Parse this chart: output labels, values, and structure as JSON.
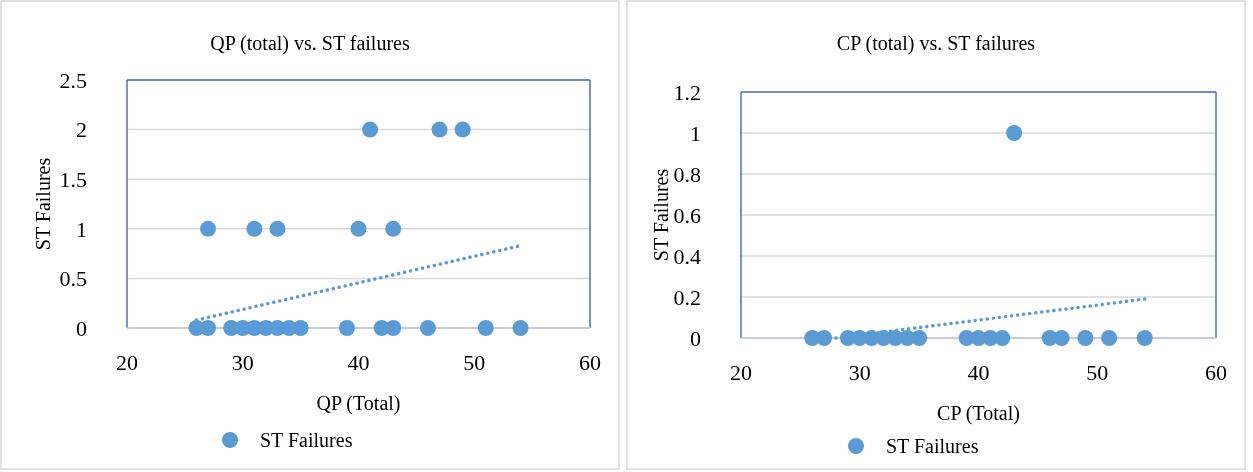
{
  "chart_data": [
    {
      "type": "scatter",
      "title": "QP (total) vs. ST failures",
      "xlabel": "QP (Total)",
      "ylabel": "ST Failures",
      "xlim": [
        20,
        60
      ],
      "xticks": [
        20,
        30,
        40,
        50,
        60
      ],
      "ylim": [
        0,
        2.5
      ],
      "yticks": [
        0,
        0.5,
        1,
        1.5,
        2,
        2.5
      ],
      "grid": "y",
      "legend": "bottom",
      "series": [
        {
          "name": "ST Failures",
          "color": "#5b9bd5",
          "marker": "circle",
          "x": [
            26,
            27,
            29,
            30,
            31,
            32,
            33,
            34,
            35,
            39,
            42,
            43,
            46,
            51,
            54,
            27,
            31,
            33,
            40,
            43,
            41,
            47,
            49
          ],
          "values": [
            0,
            0,
            0,
            0,
            0,
            0,
            0,
            0,
            0,
            0,
            0,
            0,
            0,
            0,
            0,
            1,
            1,
            1,
            1,
            1,
            2,
            2,
            2
          ]
        },
        {
          "type": "line",
          "color": "#5b9bd5",
          "marker": "none",
          "line_style": "dotted",
          "x": [
            26,
            54
          ],
          "values": [
            0.08,
            0.83
          ]
        }
      ]
    },
    {
      "type": "scatter",
      "title": "CP (total) vs. ST failures",
      "xlabel": "CP (Total)",
      "ylabel": "ST Failures",
      "xlim": [
        20,
        60
      ],
      "xticks": [
        20,
        30,
        40,
        50,
        60
      ],
      "ylim": [
        0,
        1.2
      ],
      "yticks": [
        0,
        0.2,
        0.4,
        0.6,
        0.8,
        1,
        1.2
      ],
      "grid": "y",
      "legend": "bottom",
      "series": [
        {
          "name": "ST Failures",
          "color": "#5b9bd5",
          "marker": "circle",
          "x": [
            26,
            27,
            29,
            30,
            31,
            32,
            33,
            34,
            35,
            39,
            40,
            41,
            42,
            46,
            47,
            49,
            51,
            54,
            43
          ],
          "values": [
            0,
            0,
            0,
            0,
            0,
            0,
            0,
            0,
            0,
            0,
            0,
            0,
            0,
            0,
            0,
            0,
            0,
            0,
            1
          ]
        },
        {
          "type": "line",
          "color": "#5b9bd5",
          "marker": "none",
          "line_style": "dotted",
          "x": [
            28,
            54
          ],
          "values": [
            0,
            0.19
          ]
        }
      ]
    }
  ]
}
